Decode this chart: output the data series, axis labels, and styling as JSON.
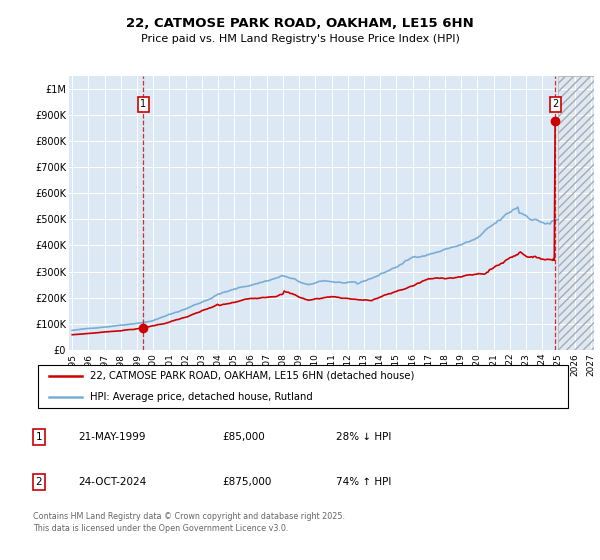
{
  "title": "22, CATMOSE PARK ROAD, OAKHAM, LE15 6HN",
  "subtitle": "Price paid vs. HM Land Registry's House Price Index (HPI)",
  "background_color": "#dce9f5",
  "red_color": "#cc0000",
  "blue_color": "#7aadd4",
  "marker1_date": "21-MAY-1999",
  "marker1_price": 85000,
  "marker1_label": "28% ↓ HPI",
  "marker2_date": "24-OCT-2024",
  "marker2_price": 875000,
  "marker2_label": "74% ↑ HPI",
  "legend_line1": "22, CATMOSE PARK ROAD, OAKHAM, LE15 6HN (detached house)",
  "legend_line2": "HPI: Average price, detached house, Rutland",
  "footer": "Contains HM Land Registry data © Crown copyright and database right 2025.\nThis data is licensed under the Open Government Licence v3.0.",
  "ylim": [
    0,
    1050000
  ],
  "yticks": [
    0,
    100000,
    200000,
    300000,
    400000,
    500000,
    600000,
    700000,
    800000,
    900000,
    1000000
  ],
  "ytick_labels": [
    "£0",
    "£100K",
    "£200K",
    "£300K",
    "£400K",
    "£500K",
    "£600K",
    "£700K",
    "£800K",
    "£900K",
    "£1M"
  ],
  "marker1_x": 1999.38,
  "marker2_x": 2024.8,
  "xlim": [
    1994.8,
    2027.2
  ],
  "hatch_start": 2025.0,
  "xtick_years": [
    1995,
    1996,
    1997,
    1998,
    1999,
    2000,
    2001,
    2002,
    2003,
    2004,
    2005,
    2006,
    2007,
    2008,
    2009,
    2010,
    2011,
    2012,
    2013,
    2014,
    2015,
    2016,
    2017,
    2018,
    2019,
    2020,
    2021,
    2022,
    2023,
    2024,
    2025,
    2026,
    2027
  ]
}
